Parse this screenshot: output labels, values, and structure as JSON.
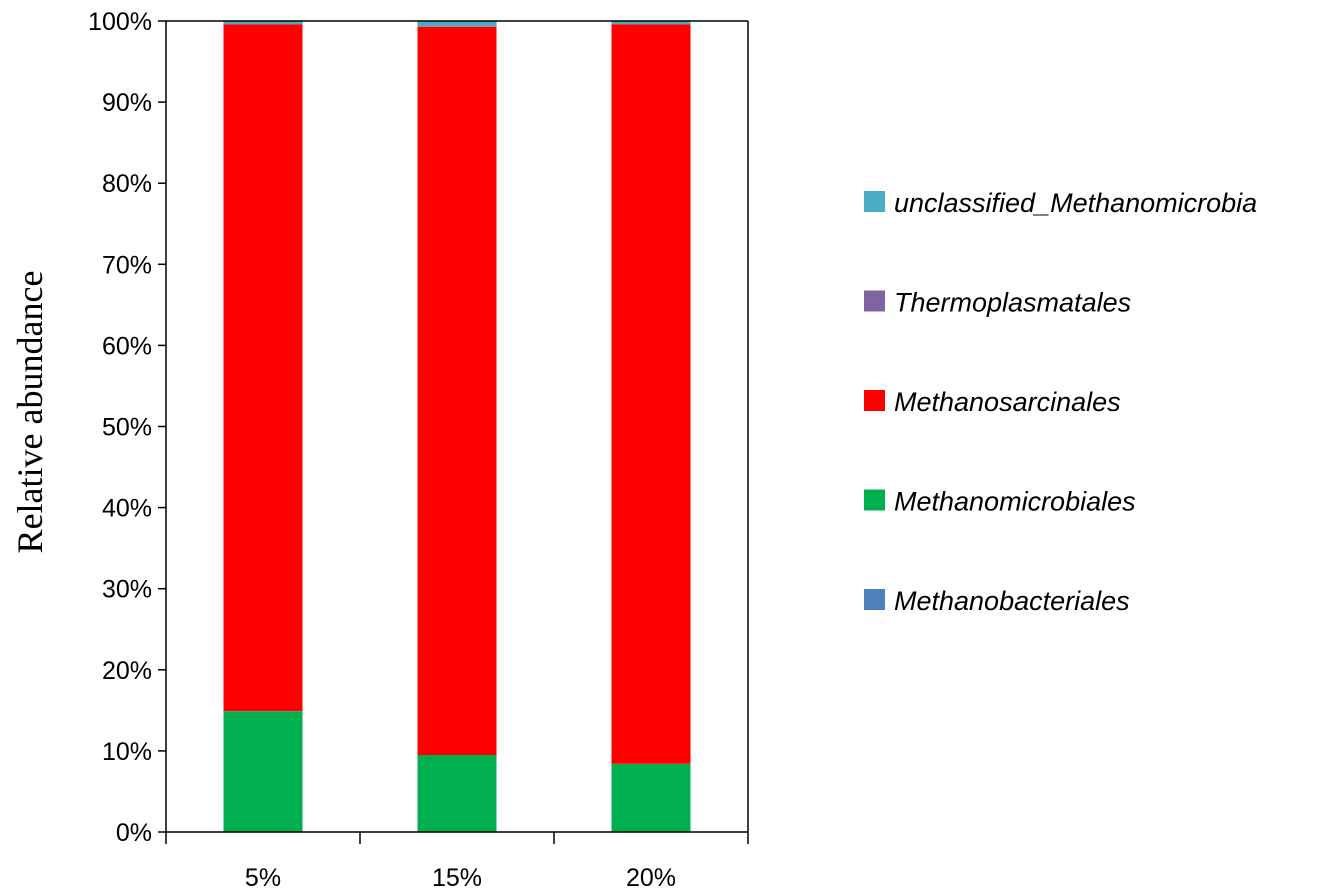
{
  "chart_data": {
    "type": "bar",
    "stacked": true,
    "percent": true,
    "categories": [
      "5%",
      "15%",
      "20%"
    ],
    "ylabel": "Relative abundance",
    "xlabel": "",
    "ylim": [
      0,
      100
    ],
    "yticks": [
      "0%",
      "10%",
      "20%",
      "30%",
      "40%",
      "50%",
      "60%",
      "70%",
      "80%",
      "90%",
      "100%"
    ],
    "grid": false,
    "legend_position": "right",
    "series": [
      {
        "name": "Methanobacteriales",
        "color": "#4F81BD",
        "values": [
          0.0,
          0.0,
          0.0
        ]
      },
      {
        "name": "Methanomicrobiales",
        "color": "#00B050",
        "values": [
          14.9,
          9.5,
          8.4
        ]
      },
      {
        "name": "Methanosarcinales",
        "color": "#FF0000",
        "values": [
          84.7,
          89.8,
          91.2
        ]
      },
      {
        "name": "Thermoplasmatales",
        "color": "#8064A2",
        "values": [
          0.0,
          0.0,
          0.0
        ]
      },
      {
        "name": "unclassified_Methanomicrobia",
        "color": "#4BACC6",
        "values": [
          0.4,
          0.7,
          0.4
        ]
      }
    ],
    "legend_order": [
      "unclassified_Methanomicrobia",
      "Thermoplasmatales",
      "Methanosarcinales",
      "Methanomicrobiales",
      "Methanobacteriales"
    ]
  }
}
